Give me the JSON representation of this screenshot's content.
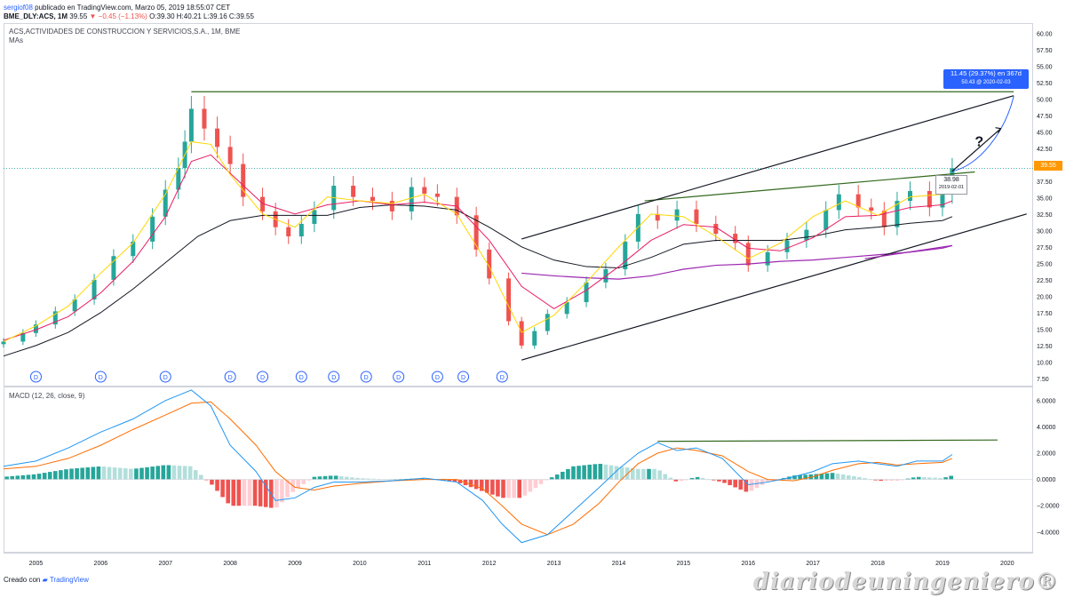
{
  "header": {
    "user": "sergiof08",
    "published": "publicado en TradingView.com, Marzo 05, 2019 18:55:07 CET",
    "symbol": "BME_DLY:ACS, 1M",
    "last": "39.55",
    "change": "−0.45 (−1.13%)",
    "ohlc": "O:39.30 H:40.21 L:39.16 C:39.55"
  },
  "price_panel": {
    "title": "ACS,ACTIVIDADES DE CONSTRUCCION Y SERVICIOS,S.A., 1M, BME",
    "indicator": "MAs",
    "price_label": "39.55",
    "callout_line1": "11.45 (29.37%) en 367d",
    "callout_line2": "50.43 @ 2020-02-03",
    "tag_value": "38.98",
    "tag_date": "2019-02-01",
    "question_mark": "?",
    "dividend_marker": "D"
  },
  "macd_panel": {
    "title": "MACD (12, 26, close, 9)"
  },
  "footer": {
    "created_with": "Creado con",
    "brand": "TradingView",
    "watermark": "diariodeuningeniero®"
  },
  "colors": {
    "up": "#26a69a",
    "down": "#ef5350",
    "ma_fast": "#ffd600",
    "ma_mid": "#e91e63",
    "ma_slow": "#131722",
    "ma_long": "#9c27b0",
    "macd": "#2196f3",
    "signal": "#ff6d00",
    "trend_green": "#33691e",
    "callout": "#2962ff",
    "price_tag": "#ff9800"
  },
  "chart_data": [
    {
      "type": "candlestick",
      "title": "ACS,ACTIVIDADES DE CONSTRUCCION Y SERVICIOS,S.A., 1M, BME",
      "x_ticks": [
        "2005",
        "2006",
        "2007",
        "2008",
        "2009",
        "2010",
        "2011",
        "2012",
        "2013",
        "2014",
        "2015",
        "2016",
        "2017",
        "2018",
        "2019",
        "2020"
      ],
      "y_ticks": [
        "60.00",
        "57.50",
        "55.00",
        "52.50",
        "50.00",
        "47.50",
        "45.00",
        "42.50",
        "40.00",
        "37.50",
        "35.00",
        "32.50",
        "30.00",
        "27.50",
        "25.00",
        "22.50",
        "20.00",
        "17.50",
        "15.00",
        "12.50",
        "10.00",
        "7.50"
      ],
      "ylim": [
        6.5,
        61.5
      ],
      "xlim": [
        2004.5,
        2020.4
      ],
      "close": [
        [
          2004.5,
          13.2
        ],
        [
          2004.8,
          14.5
        ],
        [
          2005.0,
          15.8
        ],
        [
          2005.3,
          17.8
        ],
        [
          2005.6,
          19.6
        ],
        [
          2005.9,
          22.6
        ],
        [
          2006.2,
          26.2
        ],
        [
          2006.5,
          28.4
        ],
        [
          2006.8,
          32.2
        ],
        [
          2007.0,
          36.3
        ],
        [
          2007.2,
          39.6
        ],
        [
          2007.3,
          43.6
        ],
        [
          2007.4,
          48.6
        ],
        [
          2007.6,
          45.6
        ],
        [
          2007.8,
          42.8
        ],
        [
          2008.0,
          40.2
        ],
        [
          2008.2,
          35.2
        ],
        [
          2008.5,
          33.0
        ],
        [
          2008.7,
          30.6
        ],
        [
          2008.9,
          29.2
        ],
        [
          2009.1,
          31.1
        ],
        [
          2009.3,
          33.2
        ],
        [
          2009.6,
          36.9
        ],
        [
          2009.9,
          35.2
        ],
        [
          2010.2,
          34.6
        ],
        [
          2010.5,
          33.0
        ],
        [
          2010.8,
          36.7
        ],
        [
          2011.0,
          35.7
        ],
        [
          2011.2,
          35.2
        ],
        [
          2011.5,
          32.4
        ],
        [
          2011.8,
          27.2
        ],
        [
          2012.0,
          22.8
        ],
        [
          2012.3,
          16.3
        ],
        [
          2012.5,
          12.6
        ],
        [
          2012.7,
          14.8
        ],
        [
          2012.9,
          17.4
        ],
        [
          2013.2,
          19.2
        ],
        [
          2013.5,
          22.2
        ],
        [
          2013.8,
          24.2
        ],
        [
          2014.1,
          28.4
        ],
        [
          2014.3,
          32.6
        ],
        [
          2014.6,
          31.6
        ],
        [
          2014.9,
          33.3
        ],
        [
          2015.2,
          31.1
        ],
        [
          2015.5,
          29.6
        ],
        [
          2015.8,
          28.2
        ],
        [
          2016.0,
          24.8
        ],
        [
          2016.3,
          26.8
        ],
        [
          2016.6,
          28.6
        ],
        [
          2016.9,
          30.2
        ],
        [
          2017.2,
          33.2
        ],
        [
          2017.4,
          35.6
        ],
        [
          2017.7,
          33.6
        ],
        [
          2017.9,
          33.1
        ],
        [
          2018.1,
          30.6
        ],
        [
          2018.3,
          34.6
        ],
        [
          2018.5,
          36.1
        ],
        [
          2018.8,
          33.6
        ],
        [
          2019.0,
          35.6
        ],
        [
          2019.15,
          39.55
        ]
      ],
      "ma_slow": [
        [
          2004.5,
          11.0
        ],
        [
          2005.0,
          12.6
        ],
        [
          2005.5,
          14.6
        ],
        [
          2006.0,
          17.6
        ],
        [
          2006.5,
          21.2
        ],
        [
          2007.0,
          25.2
        ],
        [
          2007.5,
          29.2
        ],
        [
          2008.0,
          31.6
        ],
        [
          2008.5,
          32.4
        ],
        [
          2009.0,
          32.4
        ],
        [
          2009.5,
          32.4
        ],
        [
          2010.0,
          33.6
        ],
        [
          2010.5,
          34.0
        ],
        [
          2011.0,
          33.8
        ],
        [
          2011.5,
          33.2
        ],
        [
          2012.0,
          30.6
        ],
        [
          2012.5,
          27.6
        ],
        [
          2013.0,
          25.6
        ],
        [
          2013.5,
          24.6
        ],
        [
          2014.0,
          24.4
        ],
        [
          2014.5,
          26.0
        ],
        [
          2015.0,
          28.0
        ],
        [
          2015.5,
          28.6
        ],
        [
          2016.0,
          28.6
        ],
        [
          2016.5,
          28.6
        ],
        [
          2017.0,
          29.2
        ],
        [
          2017.5,
          30.2
        ],
        [
          2018.0,
          30.6
        ],
        [
          2018.5,
          31.2
        ],
        [
          2019.0,
          31.6
        ],
        [
          2019.15,
          32.2
        ]
      ],
      "ma_long": [
        [
          2012.5,
          23.6
        ],
        [
          2013.0,
          23.2
        ],
        [
          2013.5,
          22.9
        ],
        [
          2014.0,
          22.7
        ],
        [
          2014.5,
          23.2
        ],
        [
          2015.0,
          24.2
        ],
        [
          2015.5,
          24.8
        ],
        [
          2016.0,
          25.0
        ],
        [
          2016.5,
          25.4
        ],
        [
          2017.0,
          25.6
        ],
        [
          2017.5,
          26.0
        ],
        [
          2018.0,
          26.4
        ],
        [
          2018.5,
          26.8
        ],
        [
          2019.0,
          27.4
        ],
        [
          2019.15,
          27.8
        ]
      ],
      "ma_mid": [
        [
          2004.5,
          13.4
        ],
        [
          2005.0,
          15.0
        ],
        [
          2005.5,
          17.0
        ],
        [
          2006.0,
          20.6
        ],
        [
          2006.5,
          25.4
        ],
        [
          2007.0,
          32.2
        ],
        [
          2007.4,
          40.6
        ],
        [
          2007.7,
          41.6
        ],
        [
          2008.0,
          38.8
        ],
        [
          2008.5,
          34.2
        ],
        [
          2009.0,
          32.6
        ],
        [
          2009.5,
          34.0
        ],
        [
          2010.0,
          34.6
        ],
        [
          2010.5,
          34.0
        ],
        [
          2011.0,
          34.4
        ],
        [
          2011.5,
          33.8
        ],
        [
          2012.0,
          28.6
        ],
        [
          2012.5,
          21.6
        ],
        [
          2013.0,
          18.2
        ],
        [
          2013.5,
          21.0
        ],
        [
          2014.0,
          24.6
        ],
        [
          2014.5,
          28.6
        ],
        [
          2015.0,
          31.0
        ],
        [
          2015.5,
          30.6
        ],
        [
          2016.0,
          27.4
        ],
        [
          2016.5,
          27.0
        ],
        [
          2017.0,
          29.0
        ],
        [
          2017.5,
          32.2
        ],
        [
          2018.0,
          32.4
        ],
        [
          2018.5,
          33.6
        ],
        [
          2019.0,
          34.0
        ],
        [
          2019.15,
          34.6
        ]
      ],
      "ma_fast": [
        [
          2004.5,
          13.2
        ],
        [
          2005.0,
          15.6
        ],
        [
          2005.5,
          18.6
        ],
        [
          2006.0,
          23.6
        ],
        [
          2006.5,
          28.2
        ],
        [
          2007.0,
          35.6
        ],
        [
          2007.4,
          43.6
        ],
        [
          2007.7,
          43.2
        ],
        [
          2008.0,
          38.6
        ],
        [
          2008.5,
          32.6
        ],
        [
          2009.0,
          30.6
        ],
        [
          2009.5,
          35.2
        ],
        [
          2010.0,
          34.6
        ],
        [
          2010.5,
          34.2
        ],
        [
          2011.0,
          35.6
        ],
        [
          2011.5,
          32.6
        ],
        [
          2012.0,
          24.6
        ],
        [
          2012.5,
          14.6
        ],
        [
          2013.0,
          17.2
        ],
        [
          2013.5,
          22.2
        ],
        [
          2014.0,
          27.6
        ],
        [
          2014.5,
          32.6
        ],
        [
          2015.0,
          32.2
        ],
        [
          2015.5,
          29.2
        ],
        [
          2016.0,
          25.8
        ],
        [
          2016.5,
          28.2
        ],
        [
          2017.0,
          32.2
        ],
        [
          2017.5,
          34.6
        ],
        [
          2018.0,
          32.4
        ],
        [
          2018.5,
          35.2
        ],
        [
          2019.0,
          35.6
        ],
        [
          2019.15,
          37.6
        ]
      ],
      "trendlines": [
        {
          "color": "green",
          "points": [
            [
              2007.4,
              51.2
            ],
            [
              2020.1,
              51.2
            ]
          ]
        },
        {
          "color": "green",
          "points": [
            [
              2014.4,
              34.6
            ],
            [
              2019.5,
              39.0
            ]
          ]
        },
        {
          "color": "black",
          "points": [
            [
              2012.5,
              28.8
            ],
            [
              2020.1,
              50.6
            ]
          ]
        },
        {
          "color": "black",
          "points": [
            [
              2012.5,
              10.4
            ],
            [
              2020.3,
              32.6
            ]
          ]
        },
        {
          "color": "purple",
          "points": [
            [
              2017.8,
              25.8
            ],
            [
              2019.15,
              27.8
            ]
          ]
        }
      ],
      "dividends_x": [
        2005.0,
        2006.0,
        2007.0,
        2008.0,
        2008.5,
        2009.1,
        2009.6,
        2010.1,
        2010.6,
        2011.2,
        2011.6,
        2012.2
      ]
    },
    {
      "type": "macd",
      "title": "MACD (12, 26, close, 9)",
      "y_ticks": [
        "6.0000",
        "4.0000",
        "2.0000",
        "0.0000",
        "−2.0000",
        "−4.0000"
      ],
      "ylim": [
        -5.5,
        7.0
      ],
      "macd": [
        [
          2004.5,
          1.0
        ],
        [
          2005.0,
          1.4
        ],
        [
          2005.5,
          2.4
        ],
        [
          2006.0,
          3.6
        ],
        [
          2006.5,
          4.6
        ],
        [
          2007.0,
          6.0
        ],
        [
          2007.4,
          6.8
        ],
        [
          2007.7,
          5.6
        ],
        [
          2008.0,
          2.6
        ],
        [
          2008.4,
          0.6
        ],
        [
          2008.7,
          -1.6
        ],
        [
          2009.0,
          -1.4
        ],
        [
          2009.3,
          -0.6
        ],
        [
          2009.6,
          -0.2
        ],
        [
          2010.0,
          -0.2
        ],
        [
          2010.5,
          -0.1
        ],
        [
          2011.0,
          0.1
        ],
        [
          2011.5,
          -0.2
        ],
        [
          2011.9,
          -1.6
        ],
        [
          2012.2,
          -3.4
        ],
        [
          2012.5,
          -4.8
        ],
        [
          2012.9,
          -4.2
        ],
        [
          2013.3,
          -2.4
        ],
        [
          2013.7,
          -0.6
        ],
        [
          2014.0,
          0.8
        ],
        [
          2014.3,
          2.0
        ],
        [
          2014.6,
          2.8
        ],
        [
          2014.9,
          2.2
        ],
        [
          2015.2,
          2.4
        ],
        [
          2015.6,
          1.6
        ],
        [
          2016.0,
          -0.4
        ],
        [
          2016.3,
          -0.2
        ],
        [
          2016.7,
          0.2
        ],
        [
          2017.0,
          0.6
        ],
        [
          2017.3,
          1.2
        ],
        [
          2017.7,
          1.4
        ],
        [
          2018.0,
          1.2
        ],
        [
          2018.3,
          1.0
        ],
        [
          2018.6,
          1.4
        ],
        [
          2019.0,
          1.4
        ],
        [
          2019.15,
          1.9
        ]
      ],
      "signal": [
        [
          2004.5,
          0.8
        ],
        [
          2005.0,
          1.0
        ],
        [
          2005.5,
          1.6
        ],
        [
          2006.0,
          2.6
        ],
        [
          2006.5,
          3.8
        ],
        [
          2007.0,
          4.9
        ],
        [
          2007.4,
          5.8
        ],
        [
          2007.7,
          5.9
        ],
        [
          2008.0,
          4.6
        ],
        [
          2008.4,
          2.6
        ],
        [
          2008.7,
          0.6
        ],
        [
          2009.0,
          -0.6
        ],
        [
          2009.3,
          -0.8
        ],
        [
          2009.6,
          -0.5
        ],
        [
          2010.0,
          -0.3
        ],
        [
          2010.5,
          -0.1
        ],
        [
          2011.0,
          0.0
        ],
        [
          2011.5,
          0.0
        ],
        [
          2011.9,
          -0.7
        ],
        [
          2012.2,
          -2.0
        ],
        [
          2012.5,
          -3.4
        ],
        [
          2012.9,
          -4.2
        ],
        [
          2013.3,
          -3.4
        ],
        [
          2013.7,
          -1.8
        ],
        [
          2014.0,
          -0.2
        ],
        [
          2014.3,
          1.2
        ],
        [
          2014.6,
          2.0
        ],
        [
          2014.9,
          2.4
        ],
        [
          2015.2,
          2.2
        ],
        [
          2015.6,
          1.8
        ],
        [
          2016.0,
          0.6
        ],
        [
          2016.3,
          0.0
        ],
        [
          2016.7,
          -0.1
        ],
        [
          2017.0,
          0.2
        ],
        [
          2017.3,
          0.7
        ],
        [
          2017.7,
          1.2
        ],
        [
          2018.0,
          1.3
        ],
        [
          2018.3,
          1.1
        ],
        [
          2018.6,
          1.2
        ],
        [
          2019.0,
          1.3
        ],
        [
          2019.15,
          1.6
        ]
      ],
      "trendline": [
        [
          2014.6,
          2.9
        ],
        [
          2019.85,
          3.0
        ]
      ]
    }
  ]
}
